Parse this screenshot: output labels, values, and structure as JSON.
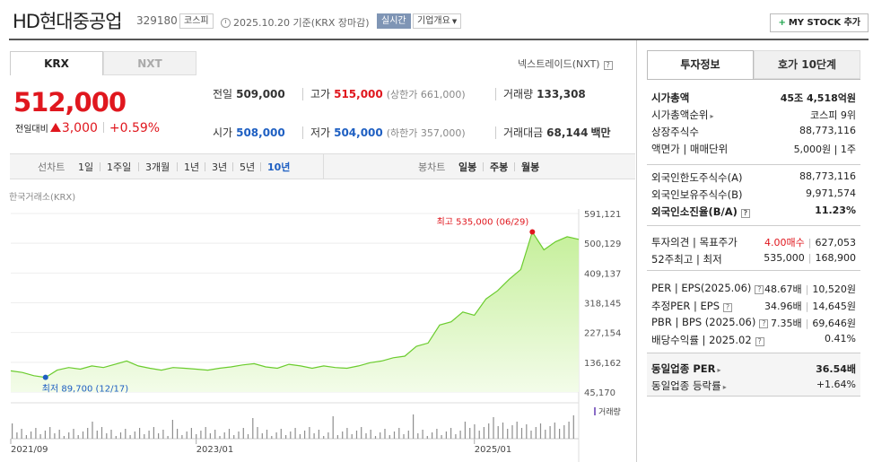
{
  "header": {
    "stock_name": "HD현대중공업",
    "stock_code": "329180",
    "market": "코스피",
    "date_text": "2025.10.20 기준(KRX 장마감)",
    "realtime": "실시간",
    "company_overview": "기업개요",
    "mystock_button": "MY STOCK 추가"
  },
  "exchange_tabs": [
    "KRX",
    "NXT"
  ],
  "nxt_link": "넥스트레이드(NXT)",
  "price": {
    "current": "512,000",
    "change_label": "전일대비",
    "change": "3,000",
    "change_pct": "+0.59%"
  },
  "info": {
    "prev_close": {
      "label": "전일",
      "value": "509,000"
    },
    "high": {
      "label": "고가",
      "value": "515,000",
      "limit": "(상한가 661,000)"
    },
    "volume": {
      "label": "거래량",
      "value": "133,308"
    },
    "open": {
      "label": "시가",
      "value": "508,000"
    },
    "low": {
      "label": "저가",
      "value": "504,000",
      "limit": "(하한가 357,000)"
    },
    "amount": {
      "label": "거래대금",
      "value": "68,144",
      "unit": "백만"
    }
  },
  "period_bar": {
    "line_chart_label": "선차트",
    "periods": [
      "1일",
      "1주일",
      "3개월",
      "1년",
      "3년",
      "5년",
      "10년"
    ],
    "selected_period": "10년",
    "candle_chart_label": "봉차트",
    "candles": [
      "일봉",
      "주봉",
      "월봉"
    ]
  },
  "chart_source": "한국거래소(KRX)",
  "chart_data": {
    "type": "area",
    "y_ticks": [
      "591,121",
      "500,129",
      "409,137",
      "318,145",
      "227,154",
      "136,162",
      "45,170"
    ],
    "ylim": [
      45170,
      591121
    ],
    "x_ticks": [
      "2021/09",
      "2023/01",
      "2025/01"
    ],
    "max_annotation": "최고 535,000 (06/29)",
    "min_annotation": "최저 89,700 (12/17)",
    "volume_label": "거래량",
    "colors": {
      "line": "#6bcc2e",
      "fill_top": "#c5ef9a",
      "fill_bottom": "#f3fce9",
      "max": "#e0171e",
      "min": "#1e5fc2"
    },
    "x": [
      "2021/09",
      "2021/10",
      "2021/11",
      "2021/12",
      "2022/01",
      "2022/02",
      "2022/03",
      "2022/04",
      "2022/05",
      "2022/06",
      "2022/07",
      "2022/08",
      "2022/09",
      "2022/10",
      "2022/11",
      "2022/12",
      "2023/01",
      "2023/02",
      "2023/03",
      "2023/04",
      "2023/05",
      "2023/06",
      "2023/07",
      "2023/08",
      "2023/09",
      "2023/10",
      "2023/11",
      "2023/12",
      "2024/01",
      "2024/02",
      "2024/03",
      "2024/04",
      "2024/05",
      "2024/06",
      "2024/07",
      "2024/08",
      "2024/09",
      "2024/10",
      "2024/11",
      "2024/12",
      "2025/01",
      "2025/02",
      "2025/03",
      "2025/04",
      "2025/05",
      "2025/06",
      "2025/07",
      "2025/08",
      "2025/09",
      "2025/10"
    ],
    "values": [
      110000,
      105000,
      95000,
      90000,
      112000,
      120000,
      115000,
      125000,
      120000,
      130000,
      140000,
      125000,
      118000,
      112000,
      120000,
      118000,
      115000,
      112000,
      118000,
      122000,
      128000,
      132000,
      122000,
      118000,
      130000,
      125000,
      118000,
      125000,
      120000,
      118000,
      125000,
      135000,
      140000,
      150000,
      155000,
      185000,
      195000,
      250000,
      260000,
      290000,
      280000,
      330000,
      355000,
      390000,
      420000,
      535000,
      480000,
      505000,
      520000,
      512000
    ]
  },
  "right_panel": {
    "tabs": [
      "투자정보",
      "호가 10단계"
    ],
    "market_cap": [
      {
        "k": "시가총액",
        "v": "45조 4,518억원",
        "bold": true
      },
      {
        "k": "시가총액순위",
        "v": "코스피 9위"
      },
      {
        "k": "상장주식수",
        "v": "88,773,116"
      },
      {
        "k": "액면가 | 매매단위",
        "v": "5,000원 | 1주"
      }
    ],
    "foreign": [
      {
        "k": "외국인한도주식수(A)",
        "v": "88,773,116"
      },
      {
        "k": "외국인보유주식수(B)",
        "v": "9,971,574"
      },
      {
        "k": "외국인소진율(B/A)",
        "v": "11.23%",
        "bold": true
      }
    ],
    "opinion": [
      {
        "k": "투자의견 | 목표주가",
        "v1": "4.00매수",
        "v2": "627,053"
      },
      {
        "k": "52주최고 | 최저",
        "v1": "535,000",
        "v2": "168,900"
      }
    ],
    "valuation": [
      {
        "k": "PER | EPS(2025.06)",
        "v1": "48.67배",
        "v2": "10,520원"
      },
      {
        "k": "추정PER | EPS",
        "v1": "34.96배",
        "v2": "14,645원"
      },
      {
        "k": "PBR | BPS (2025.06)",
        "v1": "7.35배",
        "v2": "69,646원"
      },
      {
        "k": "배당수익률 | 2025.02",
        "v1": "",
        "v2": "0.41%"
      }
    ],
    "industry": [
      {
        "k": "동일업종 PER",
        "v": "36.54배",
        "bold": true
      },
      {
        "k": "동일업종 등락률",
        "v": "+1.64%",
        "red": true
      }
    ]
  }
}
